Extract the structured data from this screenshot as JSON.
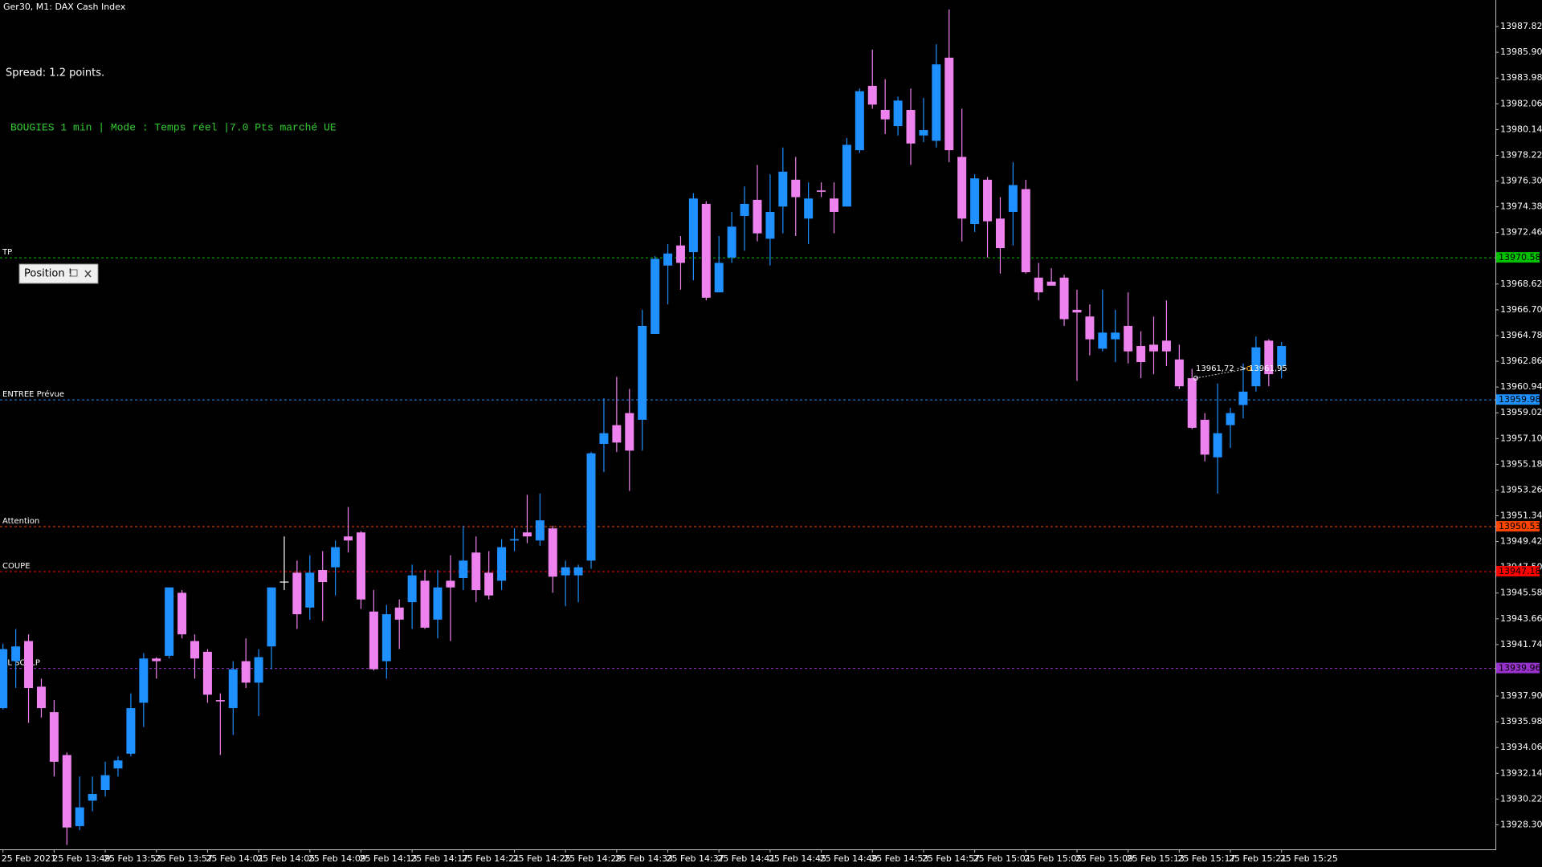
{
  "chart_data": {
    "type": "candlestick",
    "title": "Ger30, M1:  DAX Cash Index",
    "annotations": [
      "Spread: 1.2 points.",
      "BOUGIES 1 min | Mode : Temps réel |7.0 Pts marché UE"
    ],
    "panel_title": "Position !",
    "trendline_label": "13961,72 -> 13961,95",
    "colors": {
      "up": "#1e90ff",
      "down": "#ee82ee",
      "flat": "#ffffff"
    },
    "categories": [
      "25 Feb 2021",
      null,
      null,
      null,
      "25 Feb 13:49",
      null,
      null,
      null,
      "25 Feb 13:53",
      null,
      null,
      null,
      "25 Feb 13:57",
      null,
      null,
      null,
      "25 Feb 14:01",
      null,
      null,
      null,
      "25 Feb 14:05",
      null,
      null,
      null,
      "25 Feb 14:09",
      null,
      null,
      null,
      "25 Feb 14:13",
      null,
      null,
      null,
      "25 Feb 14:17",
      null,
      null,
      null,
      "25 Feb 14:21",
      null,
      null,
      null,
      "25 Feb 14:25",
      null,
      null,
      null,
      "25 Feb 14:29",
      null,
      null,
      null,
      "25 Feb 14:33",
      null,
      null,
      null,
      "25 Feb 14:37",
      null,
      null,
      null,
      "25 Feb 14:41",
      null,
      null,
      null,
      "25 Feb 14:45",
      null,
      null,
      null,
      "25 Feb 14:49",
      null,
      null,
      null,
      "25 Feb 14:53",
      null,
      null,
      null,
      "25 Feb 14:57",
      null,
      null,
      null,
      "25 Feb 15:01",
      null,
      null,
      null,
      "25 Feb 15:05",
      null,
      null,
      null,
      "25 Feb 15:09",
      null,
      null,
      null,
      "25 Feb 15:13",
      null,
      null,
      null,
      "25 Feb 15:17",
      null,
      null,
      null,
      "25 Feb 15:21",
      null,
      null,
      null,
      "25 Feb 15:25"
    ],
    "open": [
      13937.0,
      13940.5,
      13942.0,
      13938.6,
      13936.7,
      13933.5,
      13928.2,
      13930.1,
      13930.9,
      13932.5,
      13933.6,
      13937.4,
      13940.7,
      13940.9,
      13945.6,
      13942.0,
      13941.2,
      13937.6,
      13937.0,
      13940.5,
      13938.9,
      13941.6,
      13946.4,
      13947.1,
      13944.5,
      13947.3,
      13947.5,
      13949.8,
      13950.1,
      13944.2,
      13940.5,
      13944.5,
      13944.9,
      13946.5,
      13943.6,
      13946.5,
      13946.7,
      13948.6,
      13947.1,
      13946.5,
      13949.5,
      13950.1,
      13949.5,
      13950.4,
      13946.9,
      13946.9,
      13948.0,
      13956.7,
      13958.1,
      13959.0,
      13958.5,
      13964.9,
      13970.0,
      13971.5,
      13971.0,
      13974.6,
      13968.0,
      13970.6,
      13973.7,
      13974.9,
      13972.0,
      13974.4,
      13976.4,
      13973.5,
      13975.6,
      13975.0,
      13974.4,
      13978.6,
      13983.4,
      13981.6,
      13980.4,
      13981.6,
      13979.7,
      13979.3,
      13985.5,
      13978.1,
      13973.1,
      13976.4,
      13973.5,
      13974.0,
      13975.7,
      13969.1,
      13968.8,
      13969.1,
      13966.7,
      13966.2,
      13963.8,
      13964.5,
      13965.5,
      13964.0,
      13964.1,
      13964.4,
      13963.0,
      13961.6,
      13958.5,
      13955.7,
      13958.1,
      13959.6,
      13961.0,
      13964.4,
      13962.5
    ],
    "high": [
      13941.8,
      13942.9,
      13942.5,
      13939.2,
      13937.6,
      13933.7,
      13931.9,
      13931.9,
      13933.0,
      13933.4,
      13938.1,
      13941.1,
      13940.8,
      13946.0,
      13945.8,
      13942.5,
      13941.4,
      13938.1,
      13940.5,
      13942.2,
      13941.4,
      13946.0,
      13949.8,
      13948.0,
      13948.4,
      13948.7,
      13949.5,
      13952.0,
      13950.2,
      13945.8,
      13944.7,
      13945.1,
      13947.7,
      13947.3,
      13947.3,
      13948.4,
      13950.6,
      13949.8,
      13948.7,
      13949.6,
      13950.4,
      13952.9,
      13953.0,
      13950.6,
      13948.0,
      13947.7,
      13956.1,
      13960.1,
      13961.7,
      13960.8,
      13966.7,
      13970.7,
      13971.6,
      13972.2,
      13975.4,
      13974.8,
      13972.2,
      13974.0,
      13975.9,
      13977.5,
      13976.8,
      13978.8,
      13978.1,
      13976.2,
      13976.2,
      13976.2,
      13979.5,
      13983.2,
      13986.1,
      13983.9,
      13982.6,
      13983.2,
      13982.5,
      13986.5,
      13989.1,
      13981.7,
      13976.8,
      13976.6,
      13975.1,
      13977.7,
      13976.4,
      13970.2,
      13969.8,
      13969.3,
      13968.2,
      13967.1,
      13968.2,
      13966.7,
      13968.0,
      13965.1,
      13966.2,
      13967.4,
      13964.1,
      13962.3,
      13959.0,
      13961.2,
      13959.4,
      13962.7,
      13964.7,
      13964.5,
      13964.3
    ],
    "low": [
      13936.9,
      13938.5,
      13935.9,
      13936.3,
      13931.9,
      13926.8,
      13927.9,
      13929.3,
      13930.4,
      13931.9,
      13933.4,
      13935.6,
      13939.2,
      13940.7,
      13942.2,
      13939.2,
      13937.4,
      13933.5,
      13935.0,
      13938.5,
      13936.4,
      13939.9,
      13945.8,
      13942.9,
      13943.6,
      13943.5,
      13945.4,
      13948.6,
      13944.4,
      13939.8,
      13939.2,
      13941.4,
      13942.9,
      13942.9,
      13942.2,
      13942.0,
      13945.8,
      13944.9,
      13945.1,
      13945.8,
      13948.7,
      13949.3,
      13949.1,
      13945.6,
      13944.6,
      13944.9,
      13947.4,
      13954.6,
      13956.1,
      13953.2,
      13956.2,
      13964.9,
      13967.1,
      13968.2,
      13968.9,
      13967.4,
      13968.0,
      13970.2,
      13971.1,
      13971.8,
      13970.0,
      13972.4,
      13972.2,
      13971.6,
      13975.1,
      13972.4,
      13974.4,
      13978.4,
      13981.7,
      13979.8,
      13979.7,
      13977.5,
      13979.2,
      13978.8,
      13977.7,
      13971.8,
      13972.5,
      13970.6,
      13969.4,
      13971.5,
      13969.4,
      13967.4,
      13968.5,
      13965.5,
      13961.4,
      13963.3,
      13963.6,
      13962.8,
      13962.7,
      13961.6,
      13961.9,
      13962.5,
      13960.8,
      13957.8,
      13955.4,
      13953.0,
      13956.4,
      13958.6,
      13960.6,
      13961.0,
      13961.6
    ],
    "close": [
      13941.4,
      13941.6,
      13938.5,
      13937.0,
      13933.0,
      13928.1,
      13929.6,
      13930.6,
      13932.0,
      13933.1,
      13937.0,
      13940.7,
      13940.5,
      13946.0,
      13942.5,
      13940.7,
      13938.0,
      13937.5,
      13939.9,
      13938.9,
      13940.8,
      13946.0,
      13946.4,
      13944.0,
      13947.1,
      13946.4,
      13949.0,
      13949.5,
      13945.1,
      13939.9,
      13944.0,
      13943.6,
      13946.9,
      13943.0,
      13946.0,
      13946.0,
      13948.0,
      13945.8,
      13945.4,
      13949.0,
      13949.6,
      13949.8,
      13951.0,
      13946.8,
      13947.5,
      13947.5,
      13956.0,
      13957.5,
      13956.8,
      13956.2,
      13965.5,
      13970.5,
      13970.9,
      13970.2,
      13975.0,
      13967.6,
      13970.2,
      13972.9,
      13974.6,
      13972.4,
      13974.0,
      13977.0,
      13975.1,
      13975.0,
      13975.5,
      13974.0,
      13979.0,
      13983.0,
      13982.0,
      13980.9,
      13982.3,
      13979.1,
      13980.1,
      13985.0,
      13978.6,
      13973.5,
      13976.5,
      13973.3,
      13971.3,
      13976.0,
      13969.5,
      13968.0,
      13968.5,
      13966.0,
      13966.5,
      13964.5,
      13965.0,
      13965.0,
      13963.6,
      13962.8,
      13963.6,
      13963.6,
      13961.0,
      13957.9,
      13955.9,
      13957.5,
      13959.0,
      13960.6,
      13963.9,
      13961.9,
      13964.0
    ],
    "ylim": [
      13926.47,
      13989.8
    ],
    "yticks": [
      13987.82,
      {
        "value": 13985.9,
        "label": "13985.90"
      },
      13983.98,
      13982.06,
      13980.14,
      13978.22,
      {
        "value": 13976.3,
        "label": "13976.30"
      },
      13974.38,
      13972.46,
      13968.62,
      {
        "value": 13966.7,
        "label": "13966.70"
      },
      13964.78,
      13962.86,
      13960.94,
      13959.02,
      {
        "value": 13957.1,
        "label": "13957.10"
      },
      13955.18,
      13953.26,
      13951.34,
      13949.42,
      {
        "value": 13947.5,
        "label": "13947.50"
      },
      13945.58,
      13943.66,
      13941.74,
      {
        "value": 13937.9,
        "label": "13937.90"
      },
      13935.98,
      13934.06,
      13932.14,
      13930.22,
      {
        "value": 13928.3,
        "label": "13928.30"
      }
    ],
    "levels": [
      {
        "name": "TP",
        "value": 13970.58,
        "color": "#00c000"
      },
      {
        "name": "ENTREE Prévue",
        "value": 13959.98,
        "color": "#1e90ff"
      },
      {
        "name": "Attention",
        "value": 13950.53,
        "color": "#ff4500"
      },
      {
        "name": "COUPE",
        "value": 13947.18,
        "color": "#ff0000"
      },
      {
        "name": "SL SCALP",
        "value": 13939.96,
        "color": "#9932cc"
      }
    ]
  }
}
